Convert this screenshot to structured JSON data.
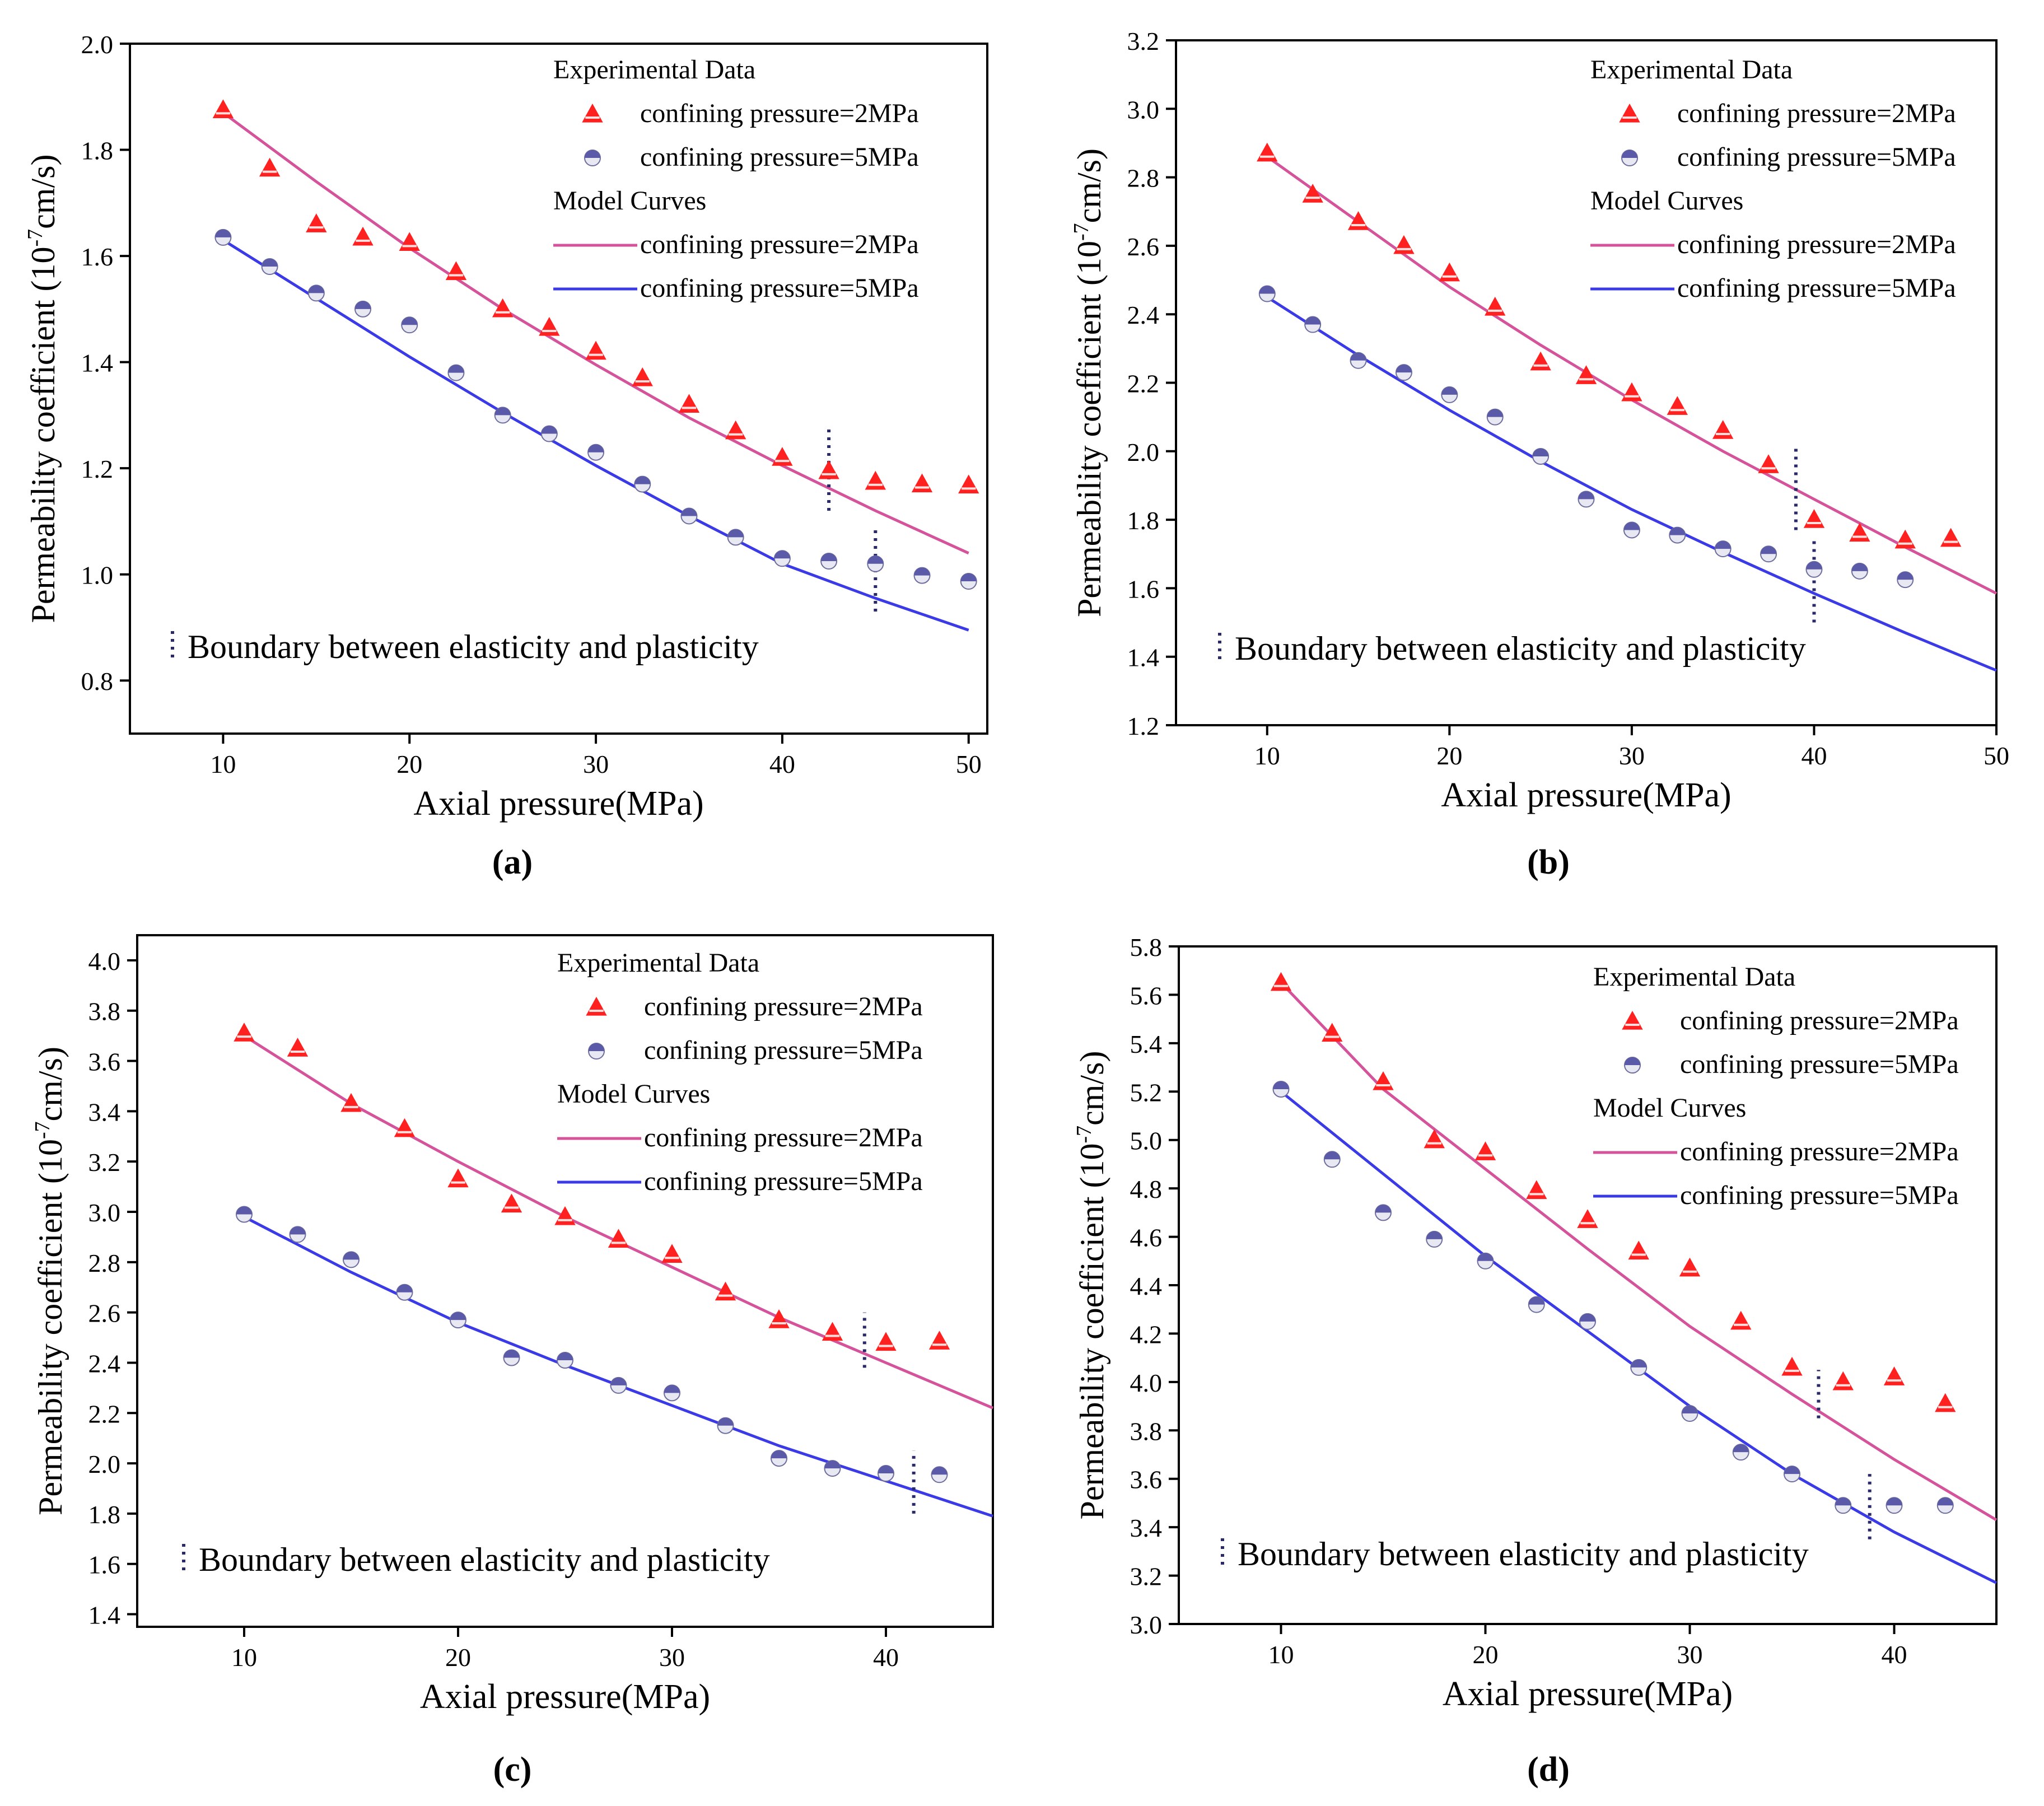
{
  "figure": {
    "panel_labels": [
      "(a)",
      "(b)",
      "(c)",
      "(d)"
    ]
  },
  "colors": {
    "model_2mpa": "#d4539a",
    "model_5mpa": "#3a3ae6",
    "exp_2mpa": "#ff2020",
    "exp_5mpa": "#5a5aa8",
    "boundary": "#2a2a6a"
  },
  "chart_data": [
    {
      "type": "scatter",
      "panel": "(a)",
      "xlabel": "Axial pressure(MPa)",
      "ylabel": "Permeability coefficient (10",
      "ylabel_sup": "-7",
      "ylabel_tail": "cm/s)",
      "xlim": [
        5,
        51
      ],
      "ylim": [
        0.7,
        2.0
      ],
      "xticks": [
        10,
        20,
        30,
        40,
        50
      ],
      "yticks": [
        0.8,
        1.0,
        1.2,
        1.4,
        1.6,
        1.8,
        2.0
      ],
      "ytick_labels": [
        "0.8",
        "1.0",
        "1.2",
        "1.4",
        "1.6",
        "1.8",
        "2.0"
      ],
      "legend": {
        "exp_header": "Experimental Data",
        "model_header": "Model Curves",
        "entry_2mpa": "confining pressure=2MPa",
        "entry_5mpa": "confining pressure=5MPa"
      },
      "annotation": "Boundary between elasticity and plasticity",
      "experimental": [
        {
          "name": "confining pressure=2MPa",
          "x": [
            10,
            12.5,
            15,
            17.5,
            20,
            22.5,
            25,
            27.5,
            30,
            32.5,
            35,
            37.5,
            40,
            42.5,
            45,
            47.5,
            50
          ],
          "y": [
            1.875,
            1.765,
            1.66,
            1.635,
            1.625,
            1.57,
            1.5,
            1.465,
            1.42,
            1.37,
            1.32,
            1.27,
            1.22,
            1.195,
            1.175,
            1.17,
            1.168
          ]
        },
        {
          "name": "confining pressure=5MPa",
          "x": [
            10,
            12.5,
            15,
            17.5,
            20,
            22.5,
            25,
            27.5,
            30,
            32.5,
            35,
            37.5,
            40,
            42.5,
            45,
            47.5,
            50
          ],
          "y": [
            1.635,
            1.58,
            1.53,
            1.5,
            1.47,
            1.38,
            1.3,
            1.265,
            1.23,
            1.17,
            1.11,
            1.07,
            1.03,
            1.025,
            1.02,
            0.998,
            0.987
          ]
        }
      ],
      "model": [
        {
          "name": "confining pressure=2MPa",
          "x": [
            10,
            15,
            20,
            25,
            30,
            35,
            40,
            45,
            50
          ],
          "y": [
            1.87,
            1.74,
            1.615,
            1.5,
            1.395,
            1.295,
            1.205,
            1.12,
            1.04
          ]
        },
        {
          "name": "confining pressure=5MPa",
          "x": [
            10,
            15,
            20,
            25,
            30,
            35,
            40,
            45,
            50
          ],
          "y": [
            1.63,
            1.52,
            1.41,
            1.305,
            1.205,
            1.11,
            1.02,
            0.955,
            0.895
          ]
        }
      ],
      "boundaries": [
        {
          "x": 42.5,
          "y_from": 1.12,
          "y_to": 1.28
        },
        {
          "x": 45,
          "y_from": 0.93,
          "y_to": 1.09
        }
      ]
    },
    {
      "type": "scatter",
      "panel": "(b)",
      "xlabel": "Axial pressure(MPa)",
      "ylabel": "Permeability coefficient (10",
      "ylabel_sup": "-7",
      "ylabel_tail": "cm/s)",
      "xlim": [
        5,
        50
      ],
      "ylim": [
        1.2,
        3.2
      ],
      "xticks": [
        10,
        20,
        30,
        40,
        50
      ],
      "yticks": [
        1.2,
        1.4,
        1.6,
        1.8,
        2.0,
        2.2,
        2.4,
        2.6,
        2.8,
        3.0,
        3.2
      ],
      "ytick_labels": [
        "1.2",
        "1.4",
        "1.6",
        "1.8",
        "2.0",
        "2.2",
        "2.4",
        "2.6",
        "2.8",
        "3.0",
        "3.2"
      ],
      "legend": {
        "exp_header": "Experimental Data",
        "model_header": "Model Curves",
        "entry_2mpa": "confining pressure=2MPa",
        "entry_5mpa": "confining pressure=5MPa"
      },
      "annotation": "Boundary between elasticity and plasticity",
      "experimental": [
        {
          "name": "confining pressure=2MPa",
          "x": [
            10,
            12.5,
            15,
            17.5,
            20,
            22.5,
            25,
            27.5,
            30,
            32.5,
            35,
            37.5,
            40,
            42.5,
            45,
            47.5
          ],
          "y": [
            2.87,
            2.75,
            2.67,
            2.6,
            2.52,
            2.42,
            2.26,
            2.22,
            2.17,
            2.13,
            2.06,
            1.96,
            1.8,
            1.76,
            1.74,
            1.745
          ]
        },
        {
          "name": "confining pressure=5MPa",
          "x": [
            10,
            12.5,
            15,
            17.5,
            20,
            22.5,
            25,
            27.5,
            30,
            32.5,
            35,
            37.5,
            40,
            42.5,
            45
          ],
          "y": [
            2.46,
            2.37,
            2.265,
            2.23,
            2.165,
            2.1,
            1.985,
            1.86,
            1.77,
            1.755,
            1.715,
            1.7,
            1.655,
            1.65,
            1.625
          ]
        }
      ],
      "model": [
        {
          "name": "confining pressure=2MPa",
          "x": [
            10,
            15,
            20,
            25,
            30,
            35,
            40,
            45,
            50
          ],
          "y": [
            2.86,
            2.67,
            2.48,
            2.31,
            2.15,
            2.0,
            1.86,
            1.72,
            1.585
          ]
        },
        {
          "name": "confining pressure=5MPa",
          "x": [
            10,
            15,
            20,
            25,
            30,
            35,
            40,
            45,
            50
          ],
          "y": [
            2.45,
            2.28,
            2.12,
            1.97,
            1.83,
            1.705,
            1.585,
            1.47,
            1.36
          ]
        }
      ],
      "boundaries": [
        {
          "x": 39,
          "y_from": 1.77,
          "y_to": 2.02
        },
        {
          "x": 40,
          "y_from": 1.5,
          "y_to": 1.75
        }
      ]
    },
    {
      "type": "scatter",
      "panel": "(c)",
      "xlabel": "Axial pressure(MPa)",
      "ylabel": "Permeability coefficient (10",
      "ylabel_sup": "-7",
      "ylabel_tail": "cm/s)",
      "xlim": [
        5,
        45
      ],
      "ylim": [
        1.35,
        4.1
      ],
      "xticks": [
        10,
        20,
        30,
        40
      ],
      "yticks": [
        1.4,
        1.6,
        1.8,
        2.0,
        2.2,
        2.4,
        2.6,
        2.8,
        3.0,
        3.2,
        3.4,
        3.6,
        3.8,
        4.0
      ],
      "ytick_labels": [
        "1.4",
        "1.6",
        "1.8",
        "2.0",
        "2.2",
        "2.4",
        "2.6",
        "2.8",
        "3.0",
        "3.2",
        "3.4",
        "3.6",
        "3.8",
        "4.0"
      ],
      "legend": {
        "exp_header": "Experimental Data",
        "model_header": "Model Curves",
        "entry_2mpa": "confining pressure=2MPa",
        "entry_5mpa": "confining pressure=5MPa"
      },
      "annotation": "Boundary between elasticity and plasticity",
      "experimental": [
        {
          "name": "confining pressure=2MPa",
          "x": [
            10,
            12.5,
            15,
            17.5,
            20,
            22.5,
            25,
            27.5,
            30,
            32.5,
            35,
            37.5,
            40,
            42.5
          ],
          "y": [
            3.71,
            3.65,
            3.43,
            3.33,
            3.13,
            3.03,
            2.98,
            2.89,
            2.83,
            2.68,
            2.57,
            2.52,
            2.48,
            2.485
          ]
        },
        {
          "name": "confining pressure=5MPa",
          "x": [
            10,
            12.5,
            15,
            17.5,
            20,
            22.5,
            25,
            27.5,
            30,
            32.5,
            35,
            37.5,
            40,
            42.5
          ],
          "y": [
            2.99,
            2.91,
            2.81,
            2.68,
            2.57,
            2.42,
            2.41,
            2.31,
            2.28,
            2.15,
            2.02,
            1.98,
            1.96,
            1.955
          ]
        }
      ],
      "model": [
        {
          "name": "confining pressure=2MPa",
          "x": [
            10,
            15,
            20,
            25,
            30,
            35,
            40,
            45
          ],
          "y": [
            3.7,
            3.43,
            3.2,
            2.98,
            2.78,
            2.58,
            2.4,
            2.22
          ]
        },
        {
          "name": "confining pressure=5MPa",
          "x": [
            10,
            15,
            20,
            25,
            30,
            35,
            40,
            45
          ],
          "y": [
            2.98,
            2.76,
            2.56,
            2.39,
            2.23,
            2.07,
            1.93,
            1.79
          ]
        }
      ],
      "boundaries": [
        {
          "x": 39,
          "y_from": 2.38,
          "y_to": 2.6
        },
        {
          "x": 41.3,
          "y_from": 1.8,
          "y_to": 2.05
        }
      ]
    },
    {
      "type": "scatter",
      "panel": "(d)",
      "xlabel": "Axial pressure(MPa)",
      "ylabel": "Permeability coefficient (10",
      "ylabel_sup": "-7",
      "ylabel_tail": "cm/s)",
      "xlim": [
        5,
        45
      ],
      "ylim": [
        3.0,
        5.8
      ],
      "xticks": [
        10,
        20,
        30,
        40
      ],
      "yticks": [
        3.0,
        3.2,
        3.4,
        3.6,
        3.8,
        4.0,
        4.2,
        4.4,
        4.6,
        4.8,
        5.0,
        5.2,
        5.4,
        5.6,
        5.8
      ],
      "ytick_labels": [
        "3.0",
        "3.2",
        "3.4",
        "3.6",
        "3.8",
        "4.0",
        "4.2",
        "4.4",
        "4.6",
        "4.8",
        "5.0",
        "5.2",
        "5.4",
        "5.6",
        "5.8"
      ],
      "legend": {
        "exp_header": "Experimental Data",
        "model_header": "Model Curves",
        "entry_2mpa": "confining pressure=2MPa",
        "entry_5mpa": "confining pressure=5MPa"
      },
      "annotation": "Boundary between elasticity and plasticity",
      "experimental": [
        {
          "name": "confining pressure=2MPa",
          "x": [
            10,
            12.5,
            15,
            17.5,
            20,
            22.5,
            25,
            27.5,
            30,
            32.5,
            35,
            37.5,
            40,
            42.5
          ],
          "y": [
            5.65,
            5.44,
            5.24,
            5.0,
            4.95,
            4.79,
            4.67,
            4.54,
            4.47,
            4.25,
            4.06,
            4.0,
            4.02,
            3.91
          ]
        },
        {
          "name": "confining pressure=5MPa",
          "x": [
            10,
            12.5,
            15,
            17.5,
            20,
            22.5,
            25,
            27.5,
            30,
            32.5,
            35,
            37.5,
            40,
            42.5
          ],
          "y": [
            5.21,
            4.92,
            4.7,
            4.59,
            4.5,
            4.32,
            4.25,
            4.06,
            3.87,
            3.71,
            3.62,
            3.49,
            3.49,
            3.49
          ]
        }
      ],
      "model": [
        {
          "name": "confining pressure=2MPa",
          "x": [
            10,
            15,
            20,
            25,
            30,
            35,
            40,
            45
          ],
          "y": [
            5.65,
            5.21,
            4.88,
            4.55,
            4.23,
            3.95,
            3.68,
            3.43
          ]
        },
        {
          "name": "confining pressure=5MPa",
          "x": [
            10,
            15,
            20,
            25,
            30,
            35,
            40,
            45
          ],
          "y": [
            5.2,
            4.86,
            4.52,
            4.21,
            3.9,
            3.62,
            3.38,
            3.17
          ]
        }
      ],
      "boundaries": [
        {
          "x": 36.3,
          "y_from": 3.85,
          "y_to": 4.05
        },
        {
          "x": 38.8,
          "y_from": 3.35,
          "y_to": 3.62
        }
      ]
    }
  ]
}
